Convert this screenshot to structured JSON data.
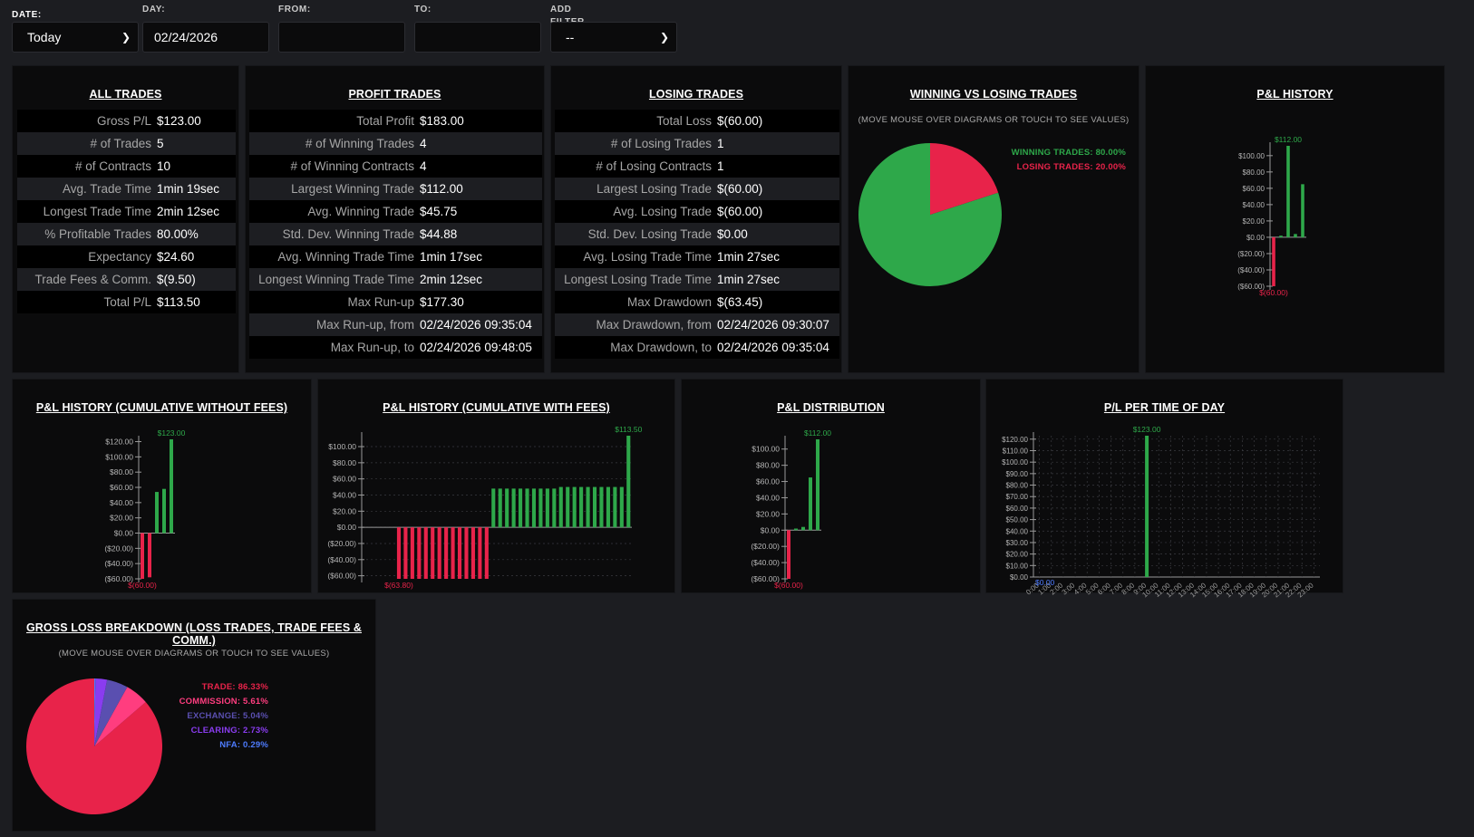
{
  "filters": {
    "date": {
      "label": "DATE:",
      "value": "Today"
    },
    "day": {
      "label": "DAY:",
      "value": "02/24/2026"
    },
    "from": {
      "label": "FROM:",
      "value": ""
    },
    "to": {
      "label": "TO:",
      "value": ""
    },
    "add_filter": {
      "label": "ADD FILTER",
      "value": "--"
    }
  },
  "all_trades": {
    "title": "ALL TRADES",
    "rows": [
      {
        "k": "Gross P/L",
        "v": "$123.00"
      },
      {
        "k": "# of Trades",
        "v": "5"
      },
      {
        "k": "# of Contracts",
        "v": "10"
      },
      {
        "k": "Avg. Trade Time",
        "v": "1min 19sec"
      },
      {
        "k": "Longest Trade Time",
        "v": "2min 12sec"
      },
      {
        "k": "% Profitable Trades",
        "v": "80.00%"
      },
      {
        "k": "Expectancy",
        "v": "$24.60"
      },
      {
        "k": "Trade Fees & Comm.",
        "v": "$(9.50)"
      },
      {
        "k": "Total P/L",
        "v": "$113.50"
      }
    ]
  },
  "profit_trades": {
    "title": "PROFIT TRADES",
    "rows": [
      {
        "k": "Total Profit",
        "v": "$183.00"
      },
      {
        "k": "# of Winning Trades",
        "v": "4"
      },
      {
        "k": "# of Winning Contracts",
        "v": "4"
      },
      {
        "k": "Largest Winning Trade",
        "v": "$112.00"
      },
      {
        "k": "Avg. Winning Trade",
        "v": "$45.75"
      },
      {
        "k": "Std. Dev. Winning Trade",
        "v": "$44.88"
      },
      {
        "k": "Avg. Winning Trade Time",
        "v": "1min 17sec"
      },
      {
        "k": "Longest Winning Trade Time",
        "v": "2min 12sec"
      },
      {
        "k": "Max Run-up",
        "v": "$177.30"
      },
      {
        "k": "Max Run-up, from",
        "v": "02/24/2026 09:35:04"
      },
      {
        "k": "Max Run-up, to",
        "v": "02/24/2026 09:48:05"
      }
    ]
  },
  "losing_trades": {
    "title": "LOSING TRADES",
    "rows": [
      {
        "k": "Total Loss",
        "v": "$(60.00)"
      },
      {
        "k": "# of Losing Trades",
        "v": "1"
      },
      {
        "k": "# of Losing Contracts",
        "v": "1"
      },
      {
        "k": "Largest Losing Trade",
        "v": "$(60.00)"
      },
      {
        "k": "Avg. Losing Trade",
        "v": "$(60.00)"
      },
      {
        "k": "Std. Dev. Losing Trade",
        "v": "$0.00"
      },
      {
        "k": "Avg. Losing Trade Time",
        "v": "1min 27sec"
      },
      {
        "k": "Longest Losing Trade Time",
        "v": "1min 27sec"
      },
      {
        "k": "Max Drawdown",
        "v": "$(63.45)"
      },
      {
        "k": "Max Drawdown, from",
        "v": "02/24/2026 09:30:07"
      },
      {
        "k": "Max Drawdown, to",
        "v": "02/24/2026 09:35:04"
      }
    ]
  },
  "win_vs_lose": {
    "title": "WINNING VS LOSING TRADES",
    "note": "(MOVE MOUSE OVER DIAGRAMS OR TOUCH TO SEE VALUES)",
    "legend": [
      {
        "label": "WINNING TRADES: 80.00%",
        "color": "#2ea84a"
      },
      {
        "label": "LOSING TRADES: 20.00%",
        "color": "#e8234a"
      }
    ]
  },
  "pl_history": {
    "title": "P&L HISTORY"
  },
  "pl_cum_no_fees": {
    "title": "P&L HISTORY (CUMULATIVE WITHOUT FEES)"
  },
  "pl_cum_with_fees": {
    "title": "P&L HISTORY (CUMULATIVE WITH FEES)"
  },
  "pl_distribution": {
    "title": "P&L DISTRIBUTION"
  },
  "pl_time_of_day": {
    "title": "P/L PER TIME OF DAY"
  },
  "gross_loss": {
    "title": "GROSS LOSS BREAKDOWN (LOSS TRADES, TRADE FEES & COMM.)",
    "note": "(MOVE MOUSE OVER DIAGRAMS OR TOUCH TO SEE VALUES)",
    "legend": [
      {
        "label": "TRADE: 86.33%",
        "color": "#e8234a"
      },
      {
        "label": "COMMISSION: 5.61%",
        "color": "#ff3d7f"
      },
      {
        "label": "EXCHANGE: 5.04%",
        "color": "#5a4fb0"
      },
      {
        "label": "CLEARING: 2.73%",
        "color": "#8a3cf0"
      },
      {
        "label": "NFA: 0.29%",
        "color": "#4e7cff"
      }
    ]
  },
  "colors": {
    "positive": "#2ea84a",
    "negative": "#e8234a",
    "panel": "#0b0b0c",
    "background": "#1c1d21"
  },
  "chart_data": [
    {
      "id": "win_vs_lose",
      "type": "pie",
      "labels": [
        "WINNING TRADES",
        "LOSING TRADES"
      ],
      "values": [
        80.0,
        20.0
      ],
      "colors": [
        "#2ea84a",
        "#e8234a"
      ]
    },
    {
      "id": "pl_history",
      "type": "bar",
      "x": [
        1,
        2,
        3,
        4,
        5
      ],
      "values": [
        -60,
        2,
        112,
        4,
        65
      ],
      "ylim": [
        -60,
        112
      ],
      "yticks": [
        -60,
        -40,
        -20,
        0,
        20,
        40,
        60,
        80,
        100
      ],
      "ytick_labels": [
        "($60.00)",
        "($40.00)",
        "($20.00)",
        "$0.00",
        "$20.00",
        "$40.00",
        "$60.00",
        "$80.00",
        "$100.00"
      ],
      "max_label": "$112.00",
      "min_label": "$(60.00)"
    },
    {
      "id": "pl_cum_no_fees",
      "type": "bar",
      "x": [
        1,
        2,
        3,
        4,
        5
      ],
      "values": [
        -60,
        -58,
        54,
        58,
        123
      ],
      "ylim": [
        -60,
        123
      ],
      "yticks": [
        -60,
        -40,
        -20,
        0,
        20,
        40,
        60,
        80,
        100,
        120
      ],
      "ytick_labels": [
        "($60.00)",
        "($40.00)",
        "($20.00)",
        "$0.00",
        "$20.00",
        "$40.00",
        "$60.00",
        "$80.00",
        "$100.00",
        "$120.00"
      ],
      "max_label": "$123.00",
      "min_label": "$(60.00)"
    },
    {
      "id": "pl_cum_with_fees",
      "type": "bar",
      "values": [
        0,
        0,
        0,
        0,
        0,
        -63.8,
        -63.8,
        -63.8,
        -63.8,
        -63.8,
        -63.8,
        -63.8,
        -63.8,
        -63.8,
        -63.8,
        -63.8,
        -63.8,
        -63.8,
        -63.8,
        48,
        48,
        48,
        48,
        48,
        48,
        48,
        48,
        48,
        48,
        50,
        50,
        50,
        50,
        50,
        50,
        50,
        50,
        50,
        50,
        113.5
      ],
      "ylim": [
        -63.8,
        113.5
      ],
      "yticks": [
        -60,
        -40,
        -20,
        0,
        20,
        40,
        60,
        80,
        100
      ],
      "ytick_labels": [
        "($60.00)",
        "($40.00)",
        "($20.00)",
        "$0.00",
        "$20.00",
        "$40.00",
        "$60.00",
        "$80.00",
        "$100.00"
      ],
      "max_label": "$113.50",
      "min_label": "$(63.80)"
    },
    {
      "id": "pl_distribution",
      "type": "bar",
      "x": [
        1,
        2,
        3,
        4,
        5
      ],
      "values": [
        -60,
        2,
        4,
        65,
        112
      ],
      "ylim": [
        -60,
        112
      ],
      "yticks": [
        -60,
        -40,
        -20,
        0,
        20,
        40,
        60,
        80,
        100
      ],
      "ytick_labels": [
        "($60.00)",
        "($40.00)",
        "($20.00)",
        "$0.00",
        "$20.00",
        "$40.00",
        "$60.00",
        "$80.00",
        "$100.00"
      ],
      "max_label": "$112.00",
      "min_label": "$(60.00)"
    },
    {
      "id": "pl_time_of_day",
      "type": "bar",
      "categories": [
        "0:00",
        "1:00",
        "2:00",
        "3:00",
        "4:00",
        "5:00",
        "6:00",
        "7:00",
        "8:00",
        "9:00",
        "10:00",
        "11:00",
        "12:00",
        "13:00",
        "14:00",
        "15:00",
        "16:00",
        "17:00",
        "18:00",
        "19:00",
        "20:00",
        "21:00",
        "22:00",
        "23:00"
      ],
      "values": [
        0,
        0,
        0,
        0,
        0,
        0,
        0,
        0,
        0,
        123,
        0,
        0,
        0,
        0,
        0,
        0,
        0,
        0,
        0,
        0,
        0,
        0,
        0,
        0
      ],
      "ylim": [
        0,
        123
      ],
      "yticks": [
        0,
        10,
        20,
        30,
        40,
        50,
        60,
        70,
        80,
        90,
        100,
        110,
        120
      ],
      "ytick_labels": [
        "$0.00",
        "$10.00",
        "$20.00",
        "$30.00",
        "$40.00",
        "$50.00",
        "$60.00",
        "$70.00",
        "$80.00",
        "$90.00",
        "$100.00",
        "$110.00",
        "$120.00"
      ],
      "max_label": "$123.00",
      "min_label": "$0.00"
    },
    {
      "id": "gross_loss",
      "type": "pie",
      "labels": [
        "TRADE",
        "COMMISSION",
        "EXCHANGE",
        "CLEARING",
        "NFA"
      ],
      "values": [
        86.33,
        5.61,
        5.04,
        2.73,
        0.29
      ],
      "colors": [
        "#e8234a",
        "#ff3d7f",
        "#5a4fb0",
        "#8a3cf0",
        "#4e7cff"
      ]
    }
  ]
}
